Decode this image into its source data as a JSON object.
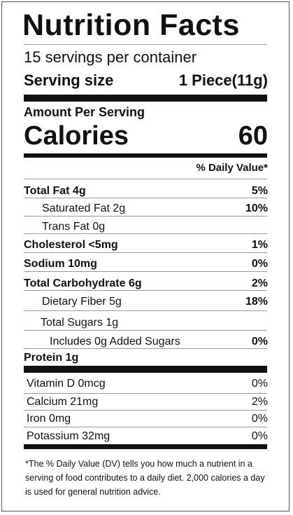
{
  "title": "Nutrition Facts",
  "servings": "15 servings per container",
  "serving_size": {
    "label": "Serving size",
    "value": "1 Piece(11g)"
  },
  "amount_per_serving": "Amount Per Serving",
  "calories": {
    "label": "Calories",
    "value": "60"
  },
  "dv_header": "% Daily Value*",
  "nutrients": [
    {
      "name": "Total Fat 4g",
      "dv": "5%"
    },
    {
      "name": "Saturated Fat 2g",
      "dv": "10%"
    },
    {
      "name": "Trans Fat 0g",
      "dv": ""
    },
    {
      "name": "Cholesterol <5mg",
      "dv": "1%"
    },
    {
      "name": "Sodium 10mg",
      "dv": "0%"
    },
    {
      "name": "Total Carbohydrate 6g",
      "dv": "2%"
    },
    {
      "name": "Dietary Fiber 5g",
      "dv": "18%"
    },
    {
      "name": "Total Sugars 1g",
      "dv": ""
    },
    {
      "name": "Includes 0g Added Sugars",
      "dv": "0%"
    },
    {
      "name": "Protein 1g",
      "dv": ""
    }
  ],
  "vitamins": [
    {
      "name": "Vitamin D 0mcg",
      "dv": "0%"
    },
    {
      "name": "Calcium 21mg",
      "dv": "2%"
    },
    {
      "name": "Iron 0mg",
      "dv": "0%"
    },
    {
      "name": "Potassium 32mg",
      "dv": "0%"
    }
  ],
  "footnote": "*The % Daily Value (DV) tells you how much a nutrient in a serving of food contributes to a daily diet. 2,000 calories a day is used for general nutrition advice."
}
